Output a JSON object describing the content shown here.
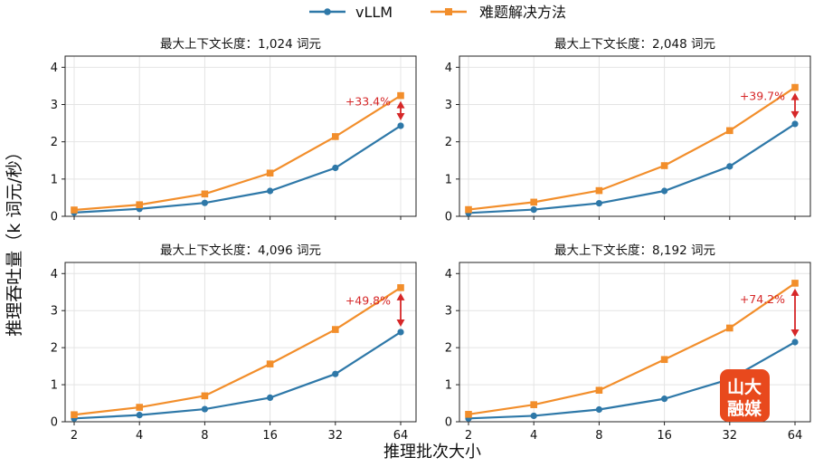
{
  "figure": {
    "ylabel": "推理吞吐量（k 词元/秒）",
    "xlabel": "推理批次大小",
    "legend": [
      {
        "name": "vLLM",
        "color": "#2e78a8",
        "marker": "circle"
      },
      {
        "name": "难题解决方法",
        "color": "#f28e2b",
        "marker": "square"
      }
    ],
    "arrow_color": "#d62728",
    "watermark": {
      "line1": "山大",
      "line2": "融媒",
      "color": "#e8491d"
    }
  },
  "chart_data": [
    {
      "type": "line",
      "title": "最大上下文长度：1,024 词元",
      "x": [
        2,
        4,
        8,
        16,
        32,
        64
      ],
      "x_scale": "log2",
      "xticks": [
        "2",
        "4",
        "8",
        "16",
        "32",
        "64"
      ],
      "ylim": [
        0,
        4.3
      ],
      "yticks": [
        "0",
        "1",
        "2",
        "3",
        "4"
      ],
      "grid": true,
      "series": [
        {
          "name": "vLLM",
          "values": [
            0.1,
            0.2,
            0.36,
            0.68,
            1.3,
            2.43
          ]
        },
        {
          "name": "难题解决方法",
          "values": [
            0.17,
            0.31,
            0.6,
            1.16,
            2.14,
            3.24
          ]
        }
      ],
      "annotation": "+33.4%"
    },
    {
      "type": "line",
      "title": "最大上下文长度：2,048 词元",
      "x": [
        2,
        4,
        8,
        16,
        32,
        64
      ],
      "x_scale": "log2",
      "xticks": [
        "2",
        "4",
        "8",
        "16",
        "32",
        "64"
      ],
      "ylim": [
        0,
        4.3
      ],
      "yticks": [
        "0",
        "1",
        "2",
        "3",
        "4"
      ],
      "grid": true,
      "series": [
        {
          "name": "vLLM",
          "values": [
            0.09,
            0.18,
            0.35,
            0.68,
            1.34,
            2.48
          ]
        },
        {
          "name": "难题解决方法",
          "values": [
            0.18,
            0.38,
            0.69,
            1.36,
            2.3,
            3.46
          ]
        }
      ],
      "annotation": "+39.7%"
    },
    {
      "type": "line",
      "title": "最大上下文长度：4,096 词元",
      "x": [
        2,
        4,
        8,
        16,
        32,
        64
      ],
      "x_scale": "log2",
      "xticks": [
        "2",
        "4",
        "8",
        "16",
        "32",
        "64"
      ],
      "ylim": [
        0,
        4.3
      ],
      "yticks": [
        "0",
        "1",
        "2",
        "3",
        "4"
      ],
      "grid": true,
      "series": [
        {
          "name": "vLLM",
          "values": [
            0.09,
            0.18,
            0.34,
            0.65,
            1.29,
            2.42
          ]
        },
        {
          "name": "难题解决方法",
          "values": [
            0.19,
            0.39,
            0.7,
            1.56,
            2.49,
            3.62
          ]
        }
      ],
      "annotation": "+49.8%"
    },
    {
      "type": "line",
      "title": "最大上下文长度：8,192 词元",
      "x": [
        2,
        4,
        8,
        16,
        32,
        64
      ],
      "x_scale": "log2",
      "xticks": [
        "2",
        "4",
        "8",
        "16",
        "32",
        "64"
      ],
      "ylim": [
        0,
        4.3
      ],
      "yticks": [
        "0",
        "1",
        "2",
        "3",
        "4"
      ],
      "grid": true,
      "series": [
        {
          "name": "vLLM",
          "values": [
            0.09,
            0.16,
            0.33,
            0.62,
            1.15,
            2.15
          ]
        },
        {
          "name": "难题解决方法",
          "values": [
            0.2,
            0.46,
            0.85,
            1.68,
            2.53,
            3.74
          ]
        }
      ],
      "annotation": "+74.2%"
    }
  ]
}
